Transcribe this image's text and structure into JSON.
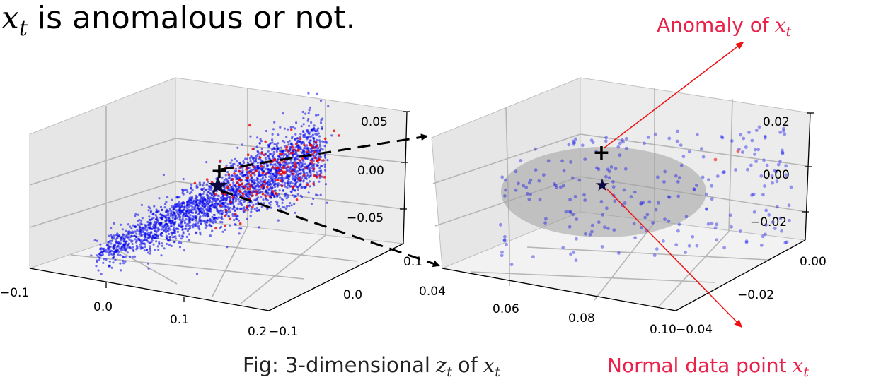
{
  "heading": {
    "var": "x",
    "sub": "t",
    "rest": "is anomalous or not."
  },
  "caption": {
    "prefix": "Fig: 3-dimensional",
    "var1": "z",
    "sub1": "t",
    "mid": "of",
    "var2": "x",
    "sub2": "t"
  },
  "annotations": {
    "anomaly": {
      "text": "Anomaly of",
      "var": "x",
      "sub": "t"
    },
    "normal": {
      "text": "Normal data point",
      "var": "x",
      "sub": "t"
    }
  },
  "colors": {
    "normal_points": "#0000ee",
    "anomaly_points": "#ee0000",
    "annotation": "#e8224a",
    "ellipse": "#a0a0a0"
  },
  "chart_data": [
    {
      "type": "scatter",
      "projection": "3d",
      "view": "full",
      "grid": true,
      "x_ticks": [
        "−0.1",
        "0.0",
        "0.1",
        "0.2"
      ],
      "y_ticks": [
        "−0.1",
        "0.0",
        "0.1"
      ],
      "z_ticks": [
        "−0.05",
        "0.00",
        "0.05"
      ],
      "xlim": [
        -0.1,
        0.2
      ],
      "ylim": [
        -0.1,
        0.1
      ],
      "zlim": [
        -0.07,
        0.06
      ],
      "series": [
        {
          "color": "blue",
          "values": "dense elongated cloud of ~2500 points along the x axis"
        },
        {
          "color": "red",
          "values": "~150 points mostly on the upper-right side of the cloud"
        }
      ],
      "markers": [
        {
          "symbol": "plus",
          "x": 0.0,
          "y": 0.0,
          "z": 0.02
        },
        {
          "symbol": "star",
          "x": 0.0,
          "y": 0.0,
          "z": 0.0
        }
      ]
    },
    {
      "type": "scatter",
      "projection": "3d",
      "view": "zoom",
      "grid": true,
      "x_ticks": [
        "0.04",
        "0.06",
        "0.08",
        "0.10"
      ],
      "y_ticks": [
        "−0.04",
        "−0.02",
        "0.00"
      ],
      "z_ticks": [
        "−0.02",
        "0.00",
        "0.02"
      ],
      "xlim": [
        0.035,
        0.105
      ],
      "ylim": [
        -0.045,
        0.005
      ],
      "zlim": [
        -0.03,
        0.025
      ],
      "series": [
        {
          "color": "blue",
          "values": "~250 sparse points"
        },
        {
          "color": "red",
          "values": "a few points near the top"
        }
      ],
      "region": "grey ellipse around the star marker",
      "markers": [
        {
          "symbol": "plus",
          "x": 0.065,
          "y": -0.02,
          "z": 0.01
        },
        {
          "symbol": "star",
          "x": 0.065,
          "y": -0.02,
          "z": 0.0
        }
      ]
    }
  ]
}
